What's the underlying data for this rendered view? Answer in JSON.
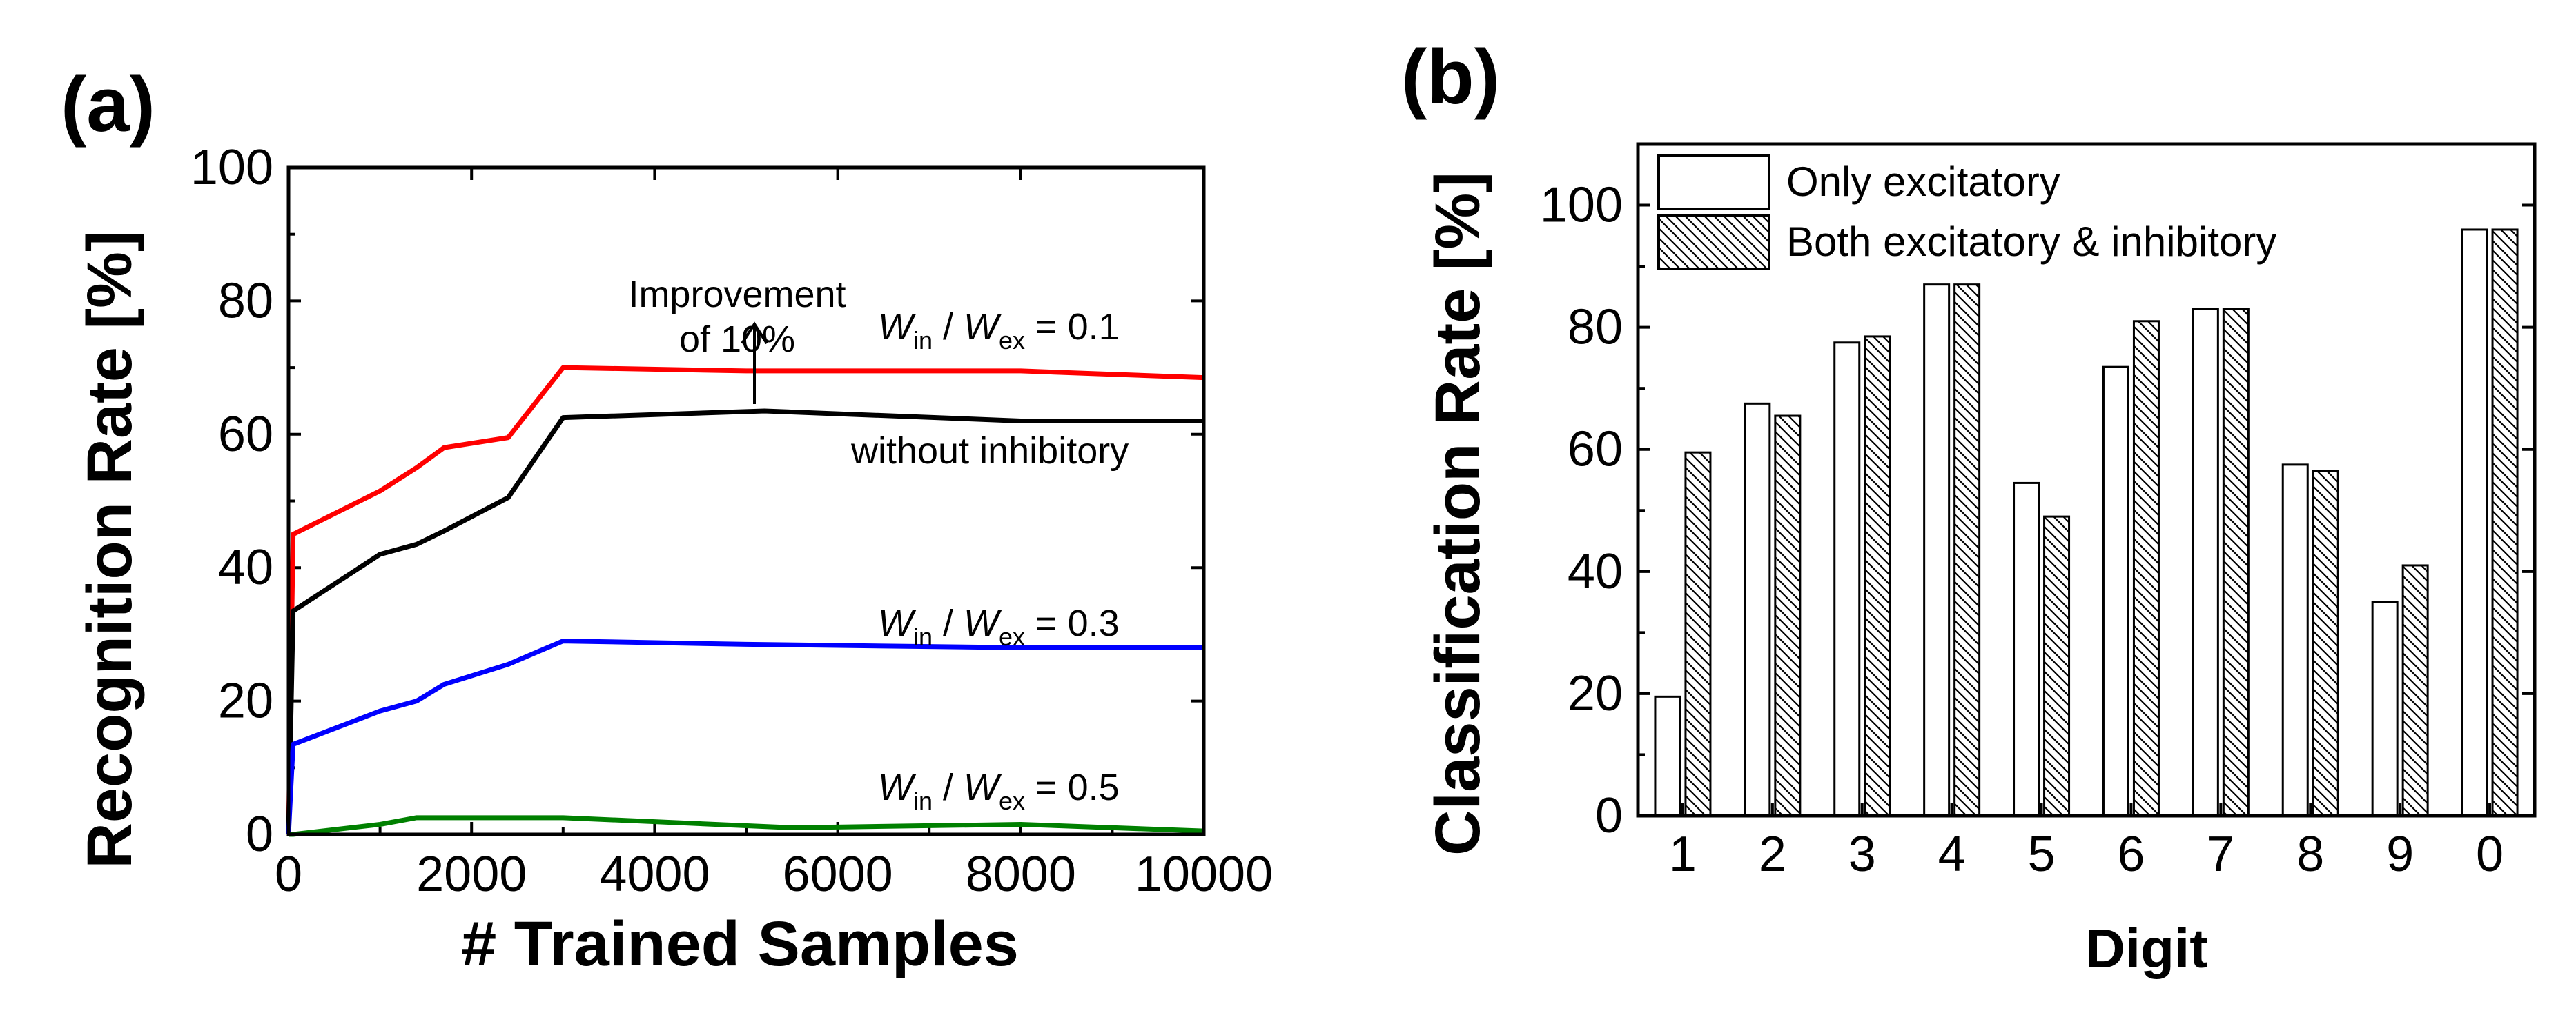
{
  "colors": {
    "red": "#ff0000",
    "black": "#000000",
    "blue": "#0000ff",
    "green": "#008000"
  },
  "chart_data": [
    {
      "type": "line",
      "panel_label": "(a)",
      "xlabel": "# Trained Samples",
      "ylabel": "Recognition Rate [%]",
      "xlim": [
        0,
        10000
      ],
      "ylim": [
        0,
        100
      ],
      "xticks": [
        0,
        2000,
        4000,
        6000,
        8000,
        10000
      ],
      "yticks": [
        0,
        20,
        40,
        60,
        80,
        100
      ],
      "annotations": {
        "improvement_line1": "Improvement",
        "improvement_line2": "of 10%",
        "without_inhibitory": "without inhibitory",
        "w_in": "W",
        "sub_in": "in",
        "w_ex": "W",
        "sub_ex": "ex",
        "ratio_01": "= 0.1",
        "ratio_03": "= 0.3",
        "ratio_05": "= 0.5"
      },
      "series": [
        {
          "color": "#ff0000",
          "x": [
            0,
            50,
            1000,
            1400,
            1700,
            2400,
            3000,
            5000,
            8000,
            10000
          ],
          "y": [
            0,
            45,
            51.5,
            55,
            58,
            59.5,
            70,
            69.5,
            69.5,
            68.5
          ]
        },
        {
          "color": "#000000",
          "x": [
            0,
            50,
            1000,
            1400,
            1700,
            2400,
            3000,
            5200,
            8000,
            10000
          ],
          "y": [
            0,
            33.5,
            42,
            43.5,
            45.5,
            50.5,
            62.5,
            63.5,
            62,
            62
          ]
        },
        {
          "color": "#0000ff",
          "x": [
            0,
            50,
            1000,
            1400,
            1700,
            2400,
            3000,
            5000,
            8000,
            10000
          ],
          "y": [
            0,
            13.5,
            18.5,
            20,
            22.5,
            25.5,
            29,
            28.5,
            28,
            28
          ]
        },
        {
          "color": "#008000",
          "x": [
            0,
            50,
            1000,
            1400,
            2400,
            3000,
            5500,
            8000,
            10000
          ],
          "y": [
            0,
            0,
            1.5,
            2.5,
            2.5,
            2.5,
            1,
            1.5,
            0.5
          ]
        }
      ]
    },
    {
      "type": "bar",
      "panel_label": "(b)",
      "xlabel": "Digit",
      "ylabel": "Classification Rate [%]",
      "ylim": [
        0,
        110
      ],
      "yticks": [
        0,
        20,
        40,
        60,
        80,
        100
      ],
      "categories": [
        "1",
        "2",
        "3",
        "4",
        "5",
        "6",
        "7",
        "8",
        "9",
        "0"
      ],
      "series": [
        {
          "name": "Only excitatory",
          "pattern": "plain",
          "values": [
            19.5,
            67.5,
            77.5,
            87,
            54.5,
            73.5,
            83,
            57.5,
            35,
            96
          ]
        },
        {
          "name": "Both excitatory & inhibitory",
          "pattern": "hatched",
          "values": [
            59.5,
            65.5,
            78.5,
            87,
            49,
            81,
            83,
            56.5,
            41,
            96
          ]
        }
      ],
      "legend": "top-left"
    }
  ]
}
